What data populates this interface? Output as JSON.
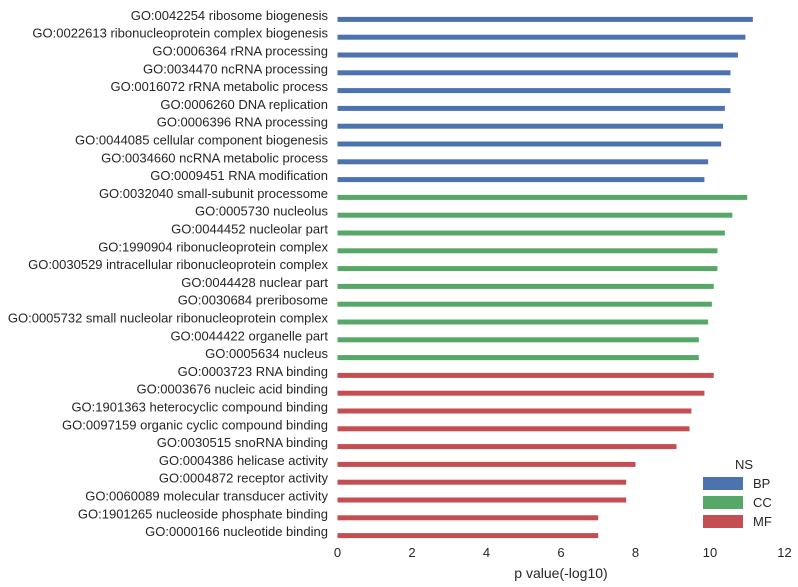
{
  "chart_data": {
    "type": "bar",
    "orientation": "horizontal",
    "categories": [
      "GO:0042254 ribosome biogenesis",
      "GO:0022613 ribonucleoprotein complex biogenesis",
      "GO:0006364 rRNA processing",
      "GO:0034470 ncRNA processing",
      "GO:0016072 rRNA metabolic process",
      "GO:0006260 DNA replication",
      "GO:0006396 RNA processing",
      "GO:0044085 cellular component biogenesis",
      "GO:0034660 ncRNA metabolic process",
      "GO:0009451 RNA modification",
      "GO:0032040 small-subunit processome",
      "GO:0005730 nucleolus",
      "GO:0044452 nucleolar part",
      "GO:1990904 ribonucleoprotein complex",
      "GO:0030529 intracellular ribonucleoprotein complex",
      "GO:0044428 nuclear part",
      "GO:0030684 preribosome",
      "GO:0005732 small nucleolar ribonucleoprotein complex",
      "GO:0044422 organelle part",
      "GO:0005634 nucleus",
      "GO:0003723 RNA binding",
      "GO:0003676 nucleic acid binding",
      "GO:1901363 heterocyclic compound binding",
      "GO:0097159 organic cyclic compound binding",
      "GO:0030515 snoRNA binding",
      "GO:0004386 helicase activity",
      "GO:0004872 receptor activity",
      "GO:0060089 molecular transducer activity",
      "GO:1901265 nucleoside phosphate binding",
      "GO:0000166 nucleotide binding"
    ],
    "values": [
      11.15,
      10.95,
      10.75,
      10.55,
      10.55,
      10.4,
      10.35,
      10.3,
      9.95,
      9.85,
      11.0,
      10.6,
      10.4,
      10.2,
      10.2,
      10.1,
      10.05,
      9.95,
      9.7,
      9.7,
      10.1,
      9.85,
      9.5,
      9.45,
      9.1,
      8.0,
      7.75,
      7.75,
      7.0,
      7.0
    ],
    "groups": [
      "BP",
      "BP",
      "BP",
      "BP",
      "BP",
      "BP",
      "BP",
      "BP",
      "BP",
      "BP",
      "CC",
      "CC",
      "CC",
      "CC",
      "CC",
      "CC",
      "CC",
      "CC",
      "CC",
      "CC",
      "MF",
      "MF",
      "MF",
      "MF",
      "MF",
      "MF",
      "MF",
      "MF",
      "MF",
      "MF"
    ],
    "series": [
      {
        "name": "BP",
        "color": "#4c72b0"
      },
      {
        "name": "CC",
        "color": "#55a868"
      },
      {
        "name": "MF",
        "color": "#c44e52"
      }
    ],
    "xlabel": "p value(-log10)",
    "ylabel": "",
    "xlim": [
      0,
      12
    ],
    "xticks": [
      "0",
      "2",
      "4",
      "6",
      "8",
      "10",
      "12"
    ],
    "grid": false,
    "legend": {
      "title": "NS",
      "position": "bottom-right"
    }
  }
}
